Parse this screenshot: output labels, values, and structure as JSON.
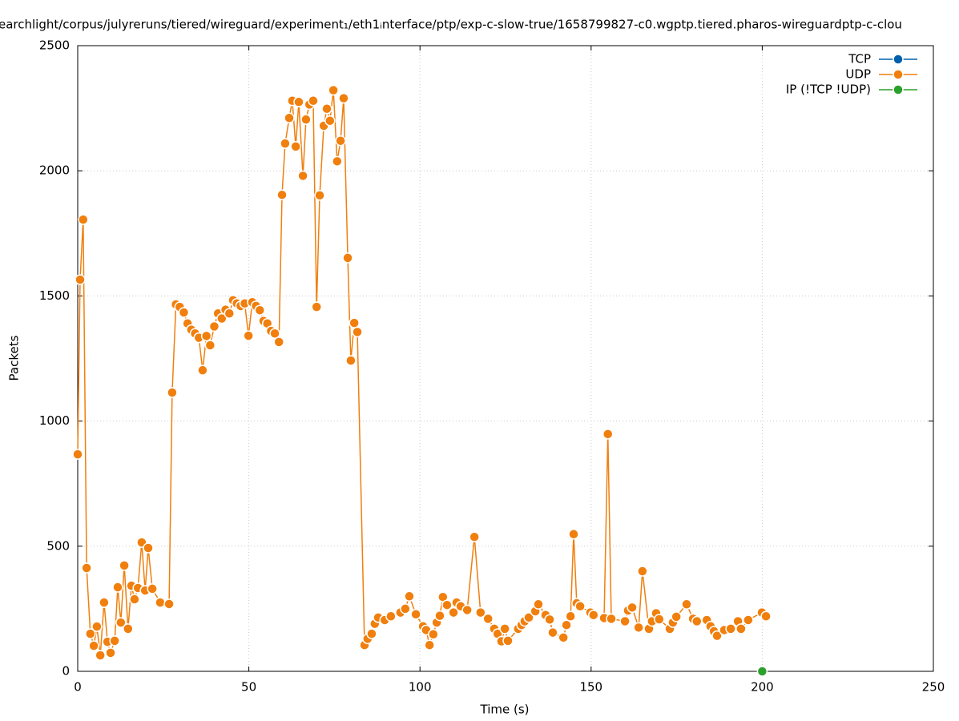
{
  "chart_data": {
    "type": "line",
    "title": "earchlight/corpus/julyreruns/tiered/wireguard/experiment₁/eth1ᵢnterface/ptp/exp-c-slow-true/1658799827-c0.wgptp.tiered.pharos-wireguardptp-c-clou",
    "x_label": "Time (s)",
    "y_label": "Packets",
    "xlim": [
      0,
      250
    ],
    "xticks": [
      0,
      50,
      100,
      150,
      200,
      250
    ],
    "ylim": [
      0,
      2500
    ],
    "yticks": [
      0,
      500,
      1000,
      1500,
      2000,
      2500
    ],
    "grid": true,
    "legend": "top-right",
    "series": [
      {
        "name": "TCP",
        "color": "#0060ad",
        "x": [],
        "values": []
      },
      {
        "name": "UDP",
        "color": "#f07f0e",
        "x": [
          0,
          0.7,
          1.6,
          2.6,
          3.7,
          4.7,
          5.6,
          6.6,
          7.7,
          8.7,
          9.6,
          10.8,
          11.7,
          12.6,
          13.6,
          14.7,
          15.7,
          16.6,
          17.6,
          18.7,
          19.7,
          20.6,
          21.8,
          24.1,
          26.7,
          27.6,
          28.7,
          29.8,
          31.0,
          32.1,
          33.2,
          34.3,
          35.4,
          36.5,
          37.6,
          38.7,
          39.9,
          41.0,
          42.1,
          43.2,
          44.3,
          45.4,
          46.5,
          47.6,
          48.8,
          49.9,
          51.0,
          52.1,
          53.2,
          54.3,
          55.4,
          56.5,
          57.6,
          58.8,
          59.7,
          60.6,
          61.8,
          62.7,
          63.7,
          64.6,
          65.8,
          66.7,
          67.7,
          68.8,
          69.8,
          70.7,
          71.9,
          72.8,
          73.7,
          74.7,
          75.8,
          76.8,
          77.7,
          78.9,
          79.8,
          80.8,
          81.7,
          83.8,
          84.7,
          85.9,
          86.8,
          87.8,
          89.7,
          91.5,
          94.3,
          95.7,
          96.9,
          98.8,
          100.9,
          101.8,
          102.8,
          103.9,
          104.9,
          105.8,
          106.7,
          107.9,
          109.8,
          110.7,
          111.9,
          113.8,
          115.9,
          117.7,
          119.9,
          121.7,
          122.7,
          123.8,
          124.8,
          125.7,
          128.7,
          129.7,
          130.6,
          131.8,
          133.7,
          134.6,
          136.7,
          137.9,
          138.8,
          141.9,
          142.8,
          144.0,
          144.9,
          145.8,
          146.8,
          149.8,
          150.7,
          153.8,
          154.9,
          155.9,
          159.9,
          160.8,
          162.0,
          163.9,
          165.0,
          166.9,
          167.8,
          169.0,
          169.9,
          173.0,
          173.9,
          174.9,
          177.9,
          179.8,
          180.9,
          183.8,
          184.9,
          185.9,
          186.8,
          188.9,
          190.8,
          192.9,
          193.8,
          195.9,
          199.9,
          201.1
        ],
        "values": [
          867,
          1565,
          1805,
          413,
          150,
          102,
          179,
          64,
          275,
          118,
          74,
          122,
          336,
          195,
          423,
          170,
          342,
          288,
          333,
          515,
          323,
          493,
          330,
          275,
          269,
          1114,
          1466,
          1456,
          1434,
          1390,
          1365,
          1350,
          1333,
          1203,
          1340,
          1303,
          1378,
          1430,
          1410,
          1445,
          1430,
          1483,
          1470,
          1460,
          1470,
          1341,
          1475,
          1460,
          1443,
          1400,
          1390,
          1360,
          1350,
          1316,
          1904,
          2109,
          2211,
          2280,
          2097,
          2275,
          1980,
          2205,
          2265,
          2280,
          1456,
          1902,
          2180,
          2248,
          2200,
          2322,
          2038,
          2120,
          2290,
          1652,
          1242,
          1392,
          1356,
          105,
          130,
          150,
          190,
          215,
          205,
          220,
          235,
          250,
          300,
          228,
          180,
          165,
          105,
          148,
          195,
          222,
          297,
          265,
          235,
          275,
          260,
          245,
          537,
          235,
          210,
          170,
          150,
          120,
          170,
          122,
          170,
          185,
          200,
          215,
          240,
          268,
          225,
          207,
          155,
          135,
          185,
          220,
          548,
          272,
          260,
          235,
          225,
          213,
          948,
          210,
          200,
          243,
          255,
          175,
          400,
          170,
          200,
          232,
          208,
          170,
          195,
          218,
          268,
          210,
          200,
          205,
          180,
          160,
          142,
          165,
          170,
          200,
          170,
          205,
          235,
          220
        ]
      },
      {
        "name": "IP (!TCP  !UDP)",
        "color": "#2ca02c",
        "x": [
          200
        ],
        "values": [
          0
        ]
      }
    ]
  }
}
